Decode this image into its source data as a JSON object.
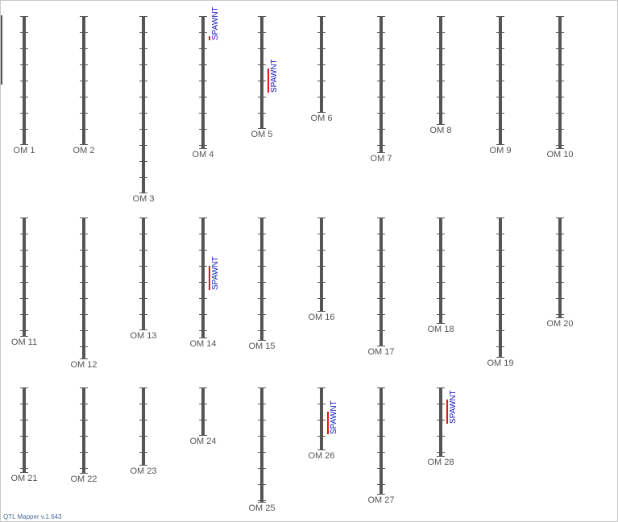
{
  "app": {
    "version_text": "QTL Mapper v.1.643"
  },
  "colors": {
    "chromosome": "#555555",
    "tick": "#555555",
    "qtl_bar": "#ee1111",
    "qtl_text": "#1010c0",
    "label": "#555555"
  },
  "linkage_groups": [
    {
      "name": "OM 1",
      "row": 1,
      "col": 1,
      "length_units": 16
    },
    {
      "name": "OM 2",
      "row": 1,
      "col": 2,
      "length_units": 16
    },
    {
      "name": "OM 3",
      "row": 1,
      "col": 3,
      "length_units": 22
    },
    {
      "name": "OM 4",
      "row": 1,
      "col": 4,
      "length_units": 16.5,
      "qtl": {
        "name": "SPAWNT",
        "start": 2.5,
        "end": 3
      }
    },
    {
      "name": "OM 5",
      "row": 1,
      "col": 5,
      "length_units": 14,
      "qtl": {
        "name": "SPAWNT",
        "start": 6.5,
        "end": 9.5
      }
    },
    {
      "name": "OM 6",
      "row": 1,
      "col": 6,
      "length_units": 12
    },
    {
      "name": "OM 7",
      "row": 1,
      "col": 7,
      "length_units": 17
    },
    {
      "name": "OM 8",
      "row": 1,
      "col": 8,
      "length_units": 13.5
    },
    {
      "name": "OM 9",
      "row": 1,
      "col": 9,
      "length_units": 16
    },
    {
      "name": "OM 10",
      "row": 1,
      "col": 10,
      "length_units": 16.5
    },
    {
      "name": "OM 11",
      "row": 2,
      "col": 1,
      "length_units": 14.8
    },
    {
      "name": "OM 12",
      "row": 2,
      "col": 2,
      "length_units": 17.6
    },
    {
      "name": "OM 13",
      "row": 2,
      "col": 3,
      "length_units": 14
    },
    {
      "name": "OM 14",
      "row": 2,
      "col": 4,
      "length_units": 15,
      "qtl": {
        "name": "SPAWNT",
        "start": 6,
        "end": 9
      }
    },
    {
      "name": "OM 15",
      "row": 2,
      "col": 5,
      "length_units": 15.3
    },
    {
      "name": "OM 16",
      "row": 2,
      "col": 6,
      "length_units": 11.7
    },
    {
      "name": "OM 17",
      "row": 2,
      "col": 7,
      "length_units": 16
    },
    {
      "name": "OM 18",
      "row": 2,
      "col": 8,
      "length_units": 13.2
    },
    {
      "name": "OM 19",
      "row": 2,
      "col": 9,
      "length_units": 17.4
    },
    {
      "name": "OM 20",
      "row": 2,
      "col": 10,
      "length_units": 12.5
    },
    {
      "name": "OM 21",
      "row": 3,
      "col": 1,
      "length_units": 10.6
    },
    {
      "name": "OM 22",
      "row": 3,
      "col": 2,
      "length_units": 10.7
    },
    {
      "name": "OM 23",
      "row": 3,
      "col": 3,
      "length_units": 9.7
    },
    {
      "name": "OM 24",
      "row": 3,
      "col": 4,
      "length_units": 6
    },
    {
      "name": "OM 25",
      "row": 3,
      "col": 5,
      "length_units": 14.3
    },
    {
      "name": "OM 26",
      "row": 3,
      "col": 6,
      "length_units": 7.8,
      "qtl": {
        "name": "SPAWNT",
        "start": 3,
        "end": 5.8
      }
    },
    {
      "name": "OM 27",
      "row": 3,
      "col": 7,
      "length_units": 13.3
    },
    {
      "name": "OM 28",
      "row": 3,
      "col": 8,
      "length_units": 8.6,
      "qtl": {
        "name": "SPAWNT",
        "start": 1.5,
        "end": 4.5
      }
    }
  ]
}
